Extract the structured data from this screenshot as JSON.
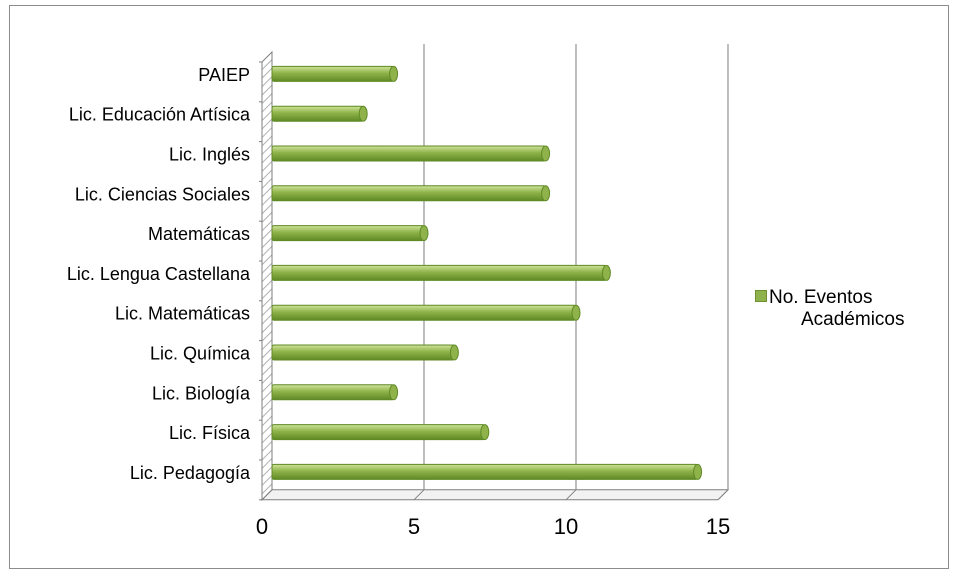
{
  "chart_data": {
    "type": "bar",
    "orientation": "horizontal",
    "categories": [
      "PAIEP",
      "Lic. Educación Artísica",
      "Lic. Inglés",
      "Lic. Ciencias Sociales",
      "Matemáticas",
      "Lic. Lengua Castellana",
      "Lic. Matemáticas",
      "Lic. Química",
      "Lic. Biología",
      "Lic. Física",
      "Lic. Pedagogía"
    ],
    "series": [
      {
        "name": "No. Eventos Académicos",
        "values": [
          4,
          3,
          9,
          9,
          5,
          11,
          10,
          6,
          4,
          7,
          14
        ]
      }
    ],
    "xlim": [
      0,
      15
    ],
    "xticks": [
      0,
      5,
      10,
      15
    ],
    "grid": true,
    "legend_position": "right",
    "colors": {
      "bar": "#8fb34a",
      "bar_dark": "#5f8a25",
      "bar_light": "#cfe39a",
      "grid": "#9a9a9a",
      "wall": "#d9d9d9"
    }
  },
  "legend": {
    "line1": "No. Eventos",
    "line2": "Académicos"
  }
}
